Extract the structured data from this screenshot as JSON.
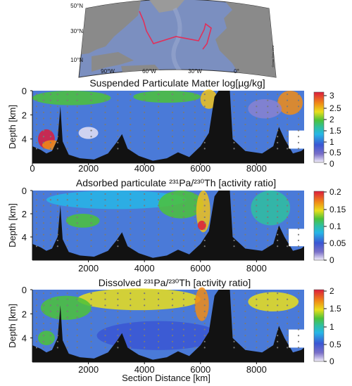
{
  "map": {
    "lat_labels": [
      "50°N",
      "30°N",
      "10°N"
    ],
    "lon_labels": [
      "90°W",
      "60°W",
      "30°W",
      "0°"
    ],
    "credit": "Ocean Data View"
  },
  "chart_data": [
    {
      "type": "heatmap",
      "title": "Suspended Particulate Matter log[µg/kg]",
      "ylabel": "Depth [km]",
      "xlabel": "",
      "xlim": [
        0,
        9700
      ],
      "ylim": [
        0,
        6
      ],
      "xticks": [
        "0",
        "2000",
        "4000",
        "6000",
        "8000"
      ],
      "yticks": [
        "0",
        "2",
        "4"
      ],
      "colorbar": {
        "range": [
          0,
          3.2
        ],
        "ticks": [
          "3",
          "2.5",
          "2",
          "1.5",
          "1",
          "0.5",
          "0"
        ]
      }
    },
    {
      "type": "heatmap",
      "title": "Adsorbed particulate ²³¹Pa/²³⁰Th [activity ratio]",
      "ylabel": "Depth [km]",
      "xlabel": "",
      "xlim": [
        0,
        9700
      ],
      "ylim": [
        0,
        6
      ],
      "xticks": [
        "2000",
        "4000",
        "6000",
        "8000"
      ],
      "yticks": [
        "0",
        "2",
        "4"
      ],
      "colorbar": {
        "range": [
          0,
          0.2
        ],
        "ticks": [
          "0.2",
          "0.15",
          "0.1",
          "0.05",
          "0"
        ]
      }
    },
    {
      "type": "heatmap",
      "title": "Dissolved ²³¹Pa/²³⁰Th [activity ratio]",
      "ylabel": "Depth [km]",
      "xlabel": "Section Distance [km]",
      "xlim": [
        0,
        9700
      ],
      "ylim": [
        0,
        6
      ],
      "xticks": [
        "2000",
        "4000",
        "6000",
        "8000"
      ],
      "yticks": [
        "0",
        "2",
        "4"
      ],
      "colorbar": {
        "range": [
          0,
          2
        ],
        "ticks": [
          "2",
          "1.5",
          "1",
          "0.5",
          "0"
        ]
      }
    }
  ]
}
